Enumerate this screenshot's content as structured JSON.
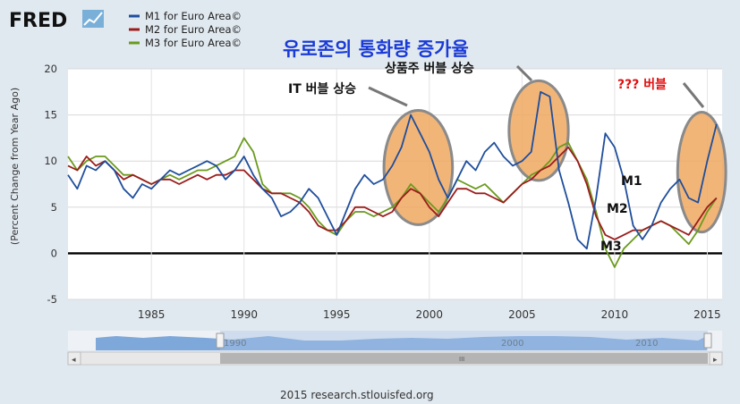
{
  "brand": {
    "logo_text": "FRED"
  },
  "overlay": {
    "title": "유로존의 통화량 증가율",
    "annotations": [
      "IT 버블 상승",
      "상품주 버블 상승",
      "??? 버블"
    ],
    "series_labels": [
      "M1",
      "M2",
      "M3"
    ]
  },
  "footer": {
    "source": "2015 research.stlouisfed.org"
  },
  "navigator": {
    "tick_labels": [
      "1990",
      "2000",
      "2010"
    ],
    "scroll_label": "III"
  },
  "colors": {
    "m1": "#1f4e9c",
    "m2": "#9b1c1c",
    "m3": "#6b9a1e",
    "highlight": "#f0a860",
    "highlight_stroke": "#8a8a8a",
    "zero_line": "#000000",
    "annotation_red": "#e01010",
    "title_blue": "#1a3ad6"
  },
  "chart_data": {
    "type": "line",
    "title": "",
    "xlabel": "",
    "ylabel": "(Percent Change from Year Ago)",
    "xlim": [
      1980.5,
      2015.8
    ],
    "ylim": [
      -5,
      20
    ],
    "x_ticks": [
      "1985",
      "1990",
      "1995",
      "2000",
      "2005",
      "2010",
      "2015"
    ],
    "y_ticks": [
      "-5",
      "0",
      "5",
      "10",
      "15",
      "20"
    ],
    "grid": true,
    "legend": "top-left",
    "series": [
      {
        "name": "M1 for Euro Area©",
        "points": [
          [
            1980.5,
            8.5
          ],
          [
            1981,
            7
          ],
          [
            1981.5,
            9.5
          ],
          [
            1982,
            9
          ],
          [
            1982.5,
            10
          ],
          [
            1983,
            9
          ],
          [
            1983.5,
            7
          ],
          [
            1984,
            6
          ],
          [
            1984.5,
            7.5
          ],
          [
            1985,
            7
          ],
          [
            1985.5,
            8
          ],
          [
            1986,
            9
          ],
          [
            1986.5,
            8.5
          ],
          [
            1987,
            9
          ],
          [
            1987.5,
            9.5
          ],
          [
            1988,
            10
          ],
          [
            1988.5,
            9.5
          ],
          [
            1989,
            8
          ],
          [
            1989.5,
            9
          ],
          [
            1990,
            10.5
          ],
          [
            1990.5,
            8.5
          ],
          [
            1991,
            7
          ],
          [
            1991.5,
            6
          ],
          [
            1992,
            4
          ],
          [
            1992.5,
            4.5
          ],
          [
            1993,
            5.5
          ],
          [
            1993.5,
            7
          ],
          [
            1994,
            6
          ],
          [
            1994.5,
            4
          ],
          [
            1995,
            2
          ],
          [
            1995.5,
            4.5
          ],
          [
            1996,
            7
          ],
          [
            1996.5,
            8.5
          ],
          [
            1997,
            7.5
          ],
          [
            1997.5,
            8
          ],
          [
            1998,
            9.5
          ],
          [
            1998.5,
            11.5
          ],
          [
            1999,
            15
          ],
          [
            1999.5,
            13
          ],
          [
            2000,
            11
          ],
          [
            2000.5,
            8
          ],
          [
            2001,
            6
          ],
          [
            2001.5,
            8
          ],
          [
            2002,
            10
          ],
          [
            2002.5,
            9
          ],
          [
            2003,
            11
          ],
          [
            2003.5,
            12
          ],
          [
            2004,
            10.5
          ],
          [
            2004.5,
            9.5
          ],
          [
            2005,
            10
          ],
          [
            2005.5,
            11
          ],
          [
            2006,
            17.5
          ],
          [
            2006.5,
            17
          ],
          [
            2007,
            9
          ],
          [
            2007.5,
            5.5
          ],
          [
            2008,
            1.5
          ],
          [
            2008.5,
            0.5
          ],
          [
            2009,
            6
          ],
          [
            2009.5,
            13
          ],
          [
            2010,
            11.5
          ],
          [
            2010.5,
            8
          ],
          [
            2011,
            3
          ],
          [
            2011.5,
            1.5
          ],
          [
            2012,
            3
          ],
          [
            2012.5,
            5.5
          ],
          [
            2013,
            7
          ],
          [
            2013.5,
            8
          ],
          [
            2014,
            6
          ],
          [
            2014.5,
            5.5
          ],
          [
            2015,
            10
          ],
          [
            2015.5,
            14
          ]
        ]
      },
      {
        "name": "M2 for Euro Area©",
        "points": [
          [
            1980.5,
            9.5
          ],
          [
            1981,
            9
          ],
          [
            1981.5,
            10.5
          ],
          [
            1982,
            9.5
          ],
          [
            1982.5,
            10
          ],
          [
            1983,
            9
          ],
          [
            1983.5,
            8
          ],
          [
            1984,
            8.5
          ],
          [
            1984.5,
            8
          ],
          [
            1985,
            7.5
          ],
          [
            1985.5,
            8
          ],
          [
            1986,
            8
          ],
          [
            1986.5,
            7.5
          ],
          [
            1987,
            8
          ],
          [
            1987.5,
            8.5
          ],
          [
            1988,
            8
          ],
          [
            1988.5,
            8.5
          ],
          [
            1989,
            8.5
          ],
          [
            1989.5,
            9
          ],
          [
            1990,
            9
          ],
          [
            1990.5,
            8
          ],
          [
            1991,
            7
          ],
          [
            1991.5,
            6.5
          ],
          [
            1992,
            6.5
          ],
          [
            1992.5,
            6
          ],
          [
            1993,
            5.5
          ],
          [
            1993.5,
            4.5
          ],
          [
            1994,
            3
          ],
          [
            1994.5,
            2.5
          ],
          [
            1995,
            2.5
          ],
          [
            1995.5,
            3.5
          ],
          [
            1996,
            5
          ],
          [
            1996.5,
            5
          ],
          [
            1997,
            4.5
          ],
          [
            1997.5,
            4
          ],
          [
            1998,
            4.5
          ],
          [
            1998.5,
            6
          ],
          [
            1999,
            7
          ],
          [
            1999.5,
            6.5
          ],
          [
            2000,
            5
          ],
          [
            2000.5,
            4
          ],
          [
            2001,
            5.5
          ],
          [
            2001.5,
            7
          ],
          [
            2002,
            7
          ],
          [
            2002.5,
            6.5
          ],
          [
            2003,
            6.5
          ],
          [
            2003.5,
            6
          ],
          [
            2004,
            5.5
          ],
          [
            2004.5,
            6.5
          ],
          [
            2005,
            7.5
          ],
          [
            2005.5,
            8
          ],
          [
            2006,
            9
          ],
          [
            2006.5,
            9.5
          ],
          [
            2007,
            10.5
          ],
          [
            2007.5,
            11.5
          ],
          [
            2008,
            10
          ],
          [
            2008.5,
            7.5
          ],
          [
            2009,
            4
          ],
          [
            2009.5,
            2
          ],
          [
            2010,
            1.5
          ],
          [
            2010.5,
            2
          ],
          [
            2011,
            2.5
          ],
          [
            2011.5,
            2.5
          ],
          [
            2012,
            3
          ],
          [
            2012.5,
            3.5
          ],
          [
            2013,
            3
          ],
          [
            2013.5,
            2.5
          ],
          [
            2014,
            2
          ],
          [
            2014.5,
            3.5
          ],
          [
            2015,
            5
          ],
          [
            2015.5,
            6
          ]
        ]
      },
      {
        "name": "M3 for Euro Area©",
        "points": [
          [
            1980.5,
            10.5
          ],
          [
            1981,
            9
          ],
          [
            1981.5,
            10
          ],
          [
            1982,
            10.5
          ],
          [
            1982.5,
            10.5
          ],
          [
            1983,
            9.5
          ],
          [
            1983.5,
            8.5
          ],
          [
            1984,
            8.5
          ],
          [
            1984.5,
            8
          ],
          [
            1985,
            7.5
          ],
          [
            1985.5,
            8
          ],
          [
            1986,
            8.5
          ],
          [
            1986.5,
            8
          ],
          [
            1987,
            8.5
          ],
          [
            1987.5,
            9
          ],
          [
            1988,
            9
          ],
          [
            1988.5,
            9.5
          ],
          [
            1989,
            10
          ],
          [
            1989.5,
            10.5
          ],
          [
            1990,
            12.5
          ],
          [
            1990.5,
            11
          ],
          [
            1991,
            7.5
          ],
          [
            1991.5,
            6.5
          ],
          [
            1992,
            6.5
          ],
          [
            1992.5,
            6.5
          ],
          [
            1993,
            6
          ],
          [
            1993.5,
            5
          ],
          [
            1994,
            3.5
          ],
          [
            1994.5,
            2.5
          ],
          [
            1995,
            2
          ],
          [
            1995.5,
            3.5
          ],
          [
            1996,
            4.5
          ],
          [
            1996.5,
            4.5
          ],
          [
            1997,
            4
          ],
          [
            1997.5,
            4.5
          ],
          [
            1998,
            5
          ],
          [
            1998.5,
            6
          ],
          [
            1999,
            7.5
          ],
          [
            1999.5,
            6.5
          ],
          [
            2000,
            5.5
          ],
          [
            2000.5,
            4.5
          ],
          [
            2001,
            6
          ],
          [
            2001.5,
            8
          ],
          [
            2002,
            7.5
          ],
          [
            2002.5,
            7
          ],
          [
            2003,
            7.5
          ],
          [
            2003.5,
            6.5
          ],
          [
            2004,
            5.5
          ],
          [
            2004.5,
            6.5
          ],
          [
            2005,
            7.5
          ],
          [
            2005.5,
            8.5
          ],
          [
            2006,
            9
          ],
          [
            2006.5,
            10
          ],
          [
            2007,
            11.5
          ],
          [
            2007.5,
            12
          ],
          [
            2008,
            10
          ],
          [
            2008.5,
            8
          ],
          [
            2009,
            4.5
          ],
          [
            2009.5,
            0.5
          ],
          [
            2010,
            -1.5
          ],
          [
            2010.5,
            0.5
          ],
          [
            2011,
            1.5
          ],
          [
            2011.5,
            2.5
          ],
          [
            2012,
            3
          ],
          [
            2012.5,
            3.5
          ],
          [
            2013,
            3
          ],
          [
            2013.5,
            2
          ],
          [
            2014,
            1
          ],
          [
            2014.5,
            2.5
          ],
          [
            2015,
            4.5
          ],
          [
            2015.5,
            6
          ]
        ]
      }
    ],
    "highlights": [
      {
        "label": "IT 버블 상승",
        "x_center": 1999.4,
        "y_center": 9.3,
        "x_radius": 1.85,
        "y_radius": 6.2
      },
      {
        "label": "상품주 버블 상승",
        "x_center": 2005.9,
        "y_center": 13.3,
        "x_radius": 1.6,
        "y_radius": 5.4
      },
      {
        "label": "??? 버블",
        "x_center": 2014.7,
        "y_center": 8.8,
        "x_radius": 1.3,
        "y_radius": 6.5
      }
    ]
  }
}
